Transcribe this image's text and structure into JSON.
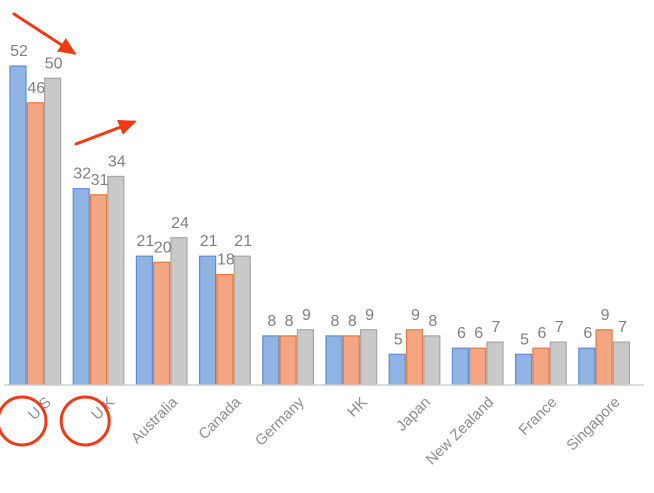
{
  "chart_data": {
    "type": "bar",
    "categories": [
      "U.S",
      "U.K",
      "Australia",
      "Canada",
      "Germany",
      "HK",
      "Japan",
      "New Zealand",
      "France",
      "Singapore"
    ],
    "series": [
      {
        "values": [
          52,
          32,
          21,
          21,
          8,
          8,
          5,
          6,
          5,
          6
        ],
        "color": "#8fb4e3",
        "stroke": "#5b8ed6"
      },
      {
        "values": [
          46,
          31,
          20,
          18,
          8,
          8,
          9,
          6,
          6,
          9
        ],
        "color": "#f4a582",
        "stroke": "#e8763f"
      },
      {
        "values": [
          50,
          34,
          24,
          21,
          9,
          9,
          8,
          7,
          7,
          7
        ],
        "color": "#c9c9c9",
        "stroke": "#a6a6a6"
      }
    ],
    "ylim": [
      0,
      52
    ],
    "grid": false,
    "legend": "none",
    "highlighted_categories": [
      "U.S",
      "U.K"
    ],
    "annotation_color": "#ee3b14"
  }
}
